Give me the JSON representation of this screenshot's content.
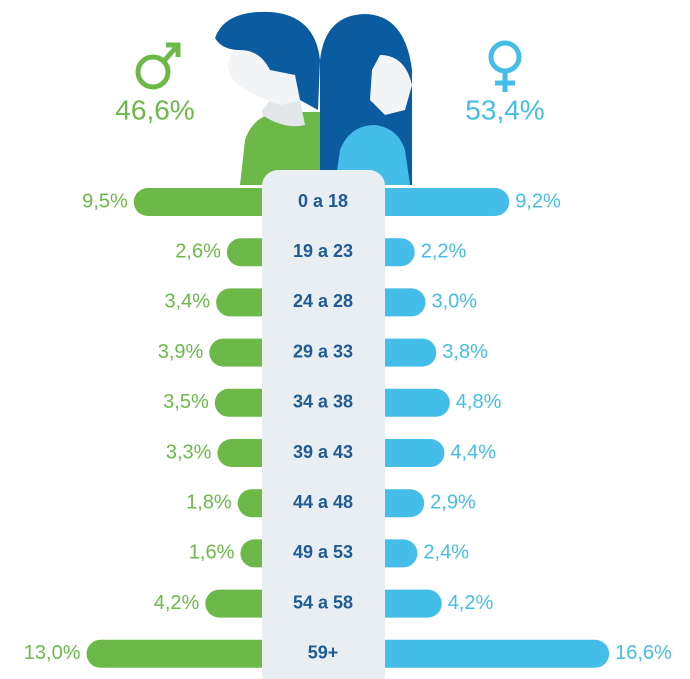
{
  "chart_data": {
    "type": "pyramid",
    "categories": [
      "0 a 18",
      "19 a 23",
      "24 a 28",
      "29 a 33",
      "34 a 38",
      "39 a 43",
      "44 a 48",
      "49 a 53",
      "54 a 58",
      "59+"
    ],
    "series": [
      {
        "color": "#6cb94a",
        "values": [
          9.5,
          2.6,
          3.4,
          3.9,
          3.5,
          3.3,
          1.8,
          1.6,
          4.2,
          13.0
        ],
        "value_labels": [
          "9,5%",
          "2,6%",
          "3,4%",
          "3,9%",
          "3,5%",
          "3,3%",
          "1,8%",
          "1,6%",
          "4,2%",
          "13,0%"
        ]
      },
      {
        "color": "#45bde9",
        "values": [
          9.2,
          2.2,
          3.0,
          3.8,
          4.8,
          4.4,
          2.9,
          2.4,
          4.2,
          16.6
        ],
        "value_labels": [
          "9,2%",
          "2,2%",
          "3,0%",
          "3,8%",
          "4,8%",
          "4,4%",
          "2,9%",
          "2,4%",
          "4,2%",
          "16,6%"
        ]
      }
    ],
    "totals": [
      46.6,
      53.4
    ],
    "total_labels": [
      "46,6%",
      "53,4%"
    ],
    "xlim": [
      0,
      20
    ]
  }
}
